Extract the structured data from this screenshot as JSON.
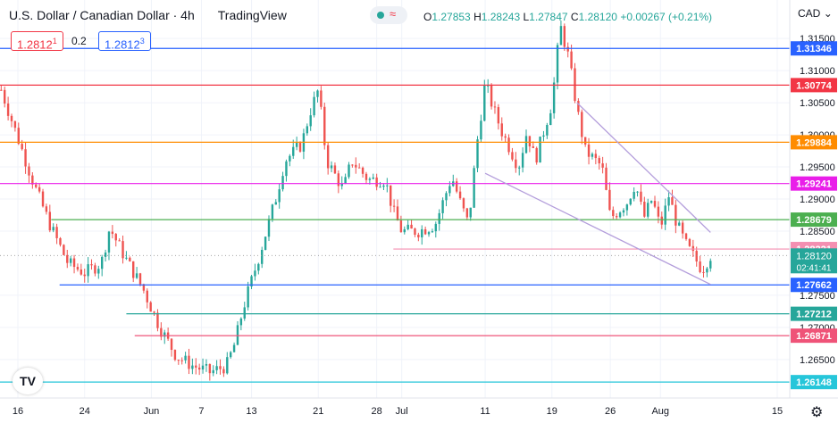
{
  "header": {
    "symbol": "U.S. Dollar / Canadian Dollar · 4h",
    "provider": "TradingView",
    "open_label": "O",
    "open": "1.27853",
    "high_label": "H",
    "high": "1.28243",
    "low_label": "L",
    "low": "1.27847",
    "close_label": "C",
    "close": "1.28120",
    "change": "+0.00267 (+0.21%)",
    "currency": "CAD"
  },
  "trade": {
    "sell": "1.2812",
    "sell_sup": "1",
    "spread": "0.2",
    "buy": "1.2812",
    "buy_sup": "3"
  },
  "colors": {
    "up": "#26a69a",
    "down": "#ef5350",
    "grid": "#f0f3fa"
  },
  "chart_data": {
    "type": "candlestick",
    "ylim": [
      1.259,
      1.321
    ],
    "x_ticks": [
      {
        "label": "16",
        "date": "2021-05-16"
      },
      {
        "label": "24",
        "date": "2021-05-24"
      },
      {
        "label": "Jun",
        "date": "2021-06-01"
      },
      {
        "label": "7",
        "date": "2021-06-07"
      },
      {
        "label": "13",
        "date": "2021-06-13"
      },
      {
        "label": "21",
        "date": "2021-06-21"
      },
      {
        "label": "28",
        "date": "2021-06-28"
      },
      {
        "label": "Jul",
        "date": "2021-07-01"
      },
      {
        "label": "11",
        "date": "2021-07-11"
      },
      {
        "label": "19",
        "date": "2021-07-19"
      },
      {
        "label": "26",
        "date": "2021-07-26"
      },
      {
        "label": "Aug",
        "date": "2021-08-01"
      },
      {
        "label": "15",
        "date": "2021-08-15"
      }
    ],
    "y_ticks": [
      "1.31500",
      "1.31000",
      "1.30500",
      "1.30000",
      "1.29500",
      "1.29000",
      "1.28500",
      "1.27500",
      "1.27000",
      "1.26500"
    ],
    "path": [
      [
        "2021-05-14",
        1.307
      ],
      [
        "2021-05-16",
        1.2995
      ],
      [
        "2021-05-18",
        1.292
      ],
      [
        "2021-05-20",
        1.2855
      ],
      [
        "2021-05-22",
        1.28
      ],
      [
        "2021-05-24",
        1.2785
      ],
      [
        "2021-05-26",
        1.28
      ],
      [
        "2021-05-27",
        1.2855
      ],
      [
        "2021-05-29",
        1.2805
      ],
      [
        "2021-05-31",
        1.276
      ],
      [
        "2021-06-02",
        1.27
      ],
      [
        "2021-06-04",
        1.2655
      ],
      [
        "2021-06-06",
        1.264
      ],
      [
        "2021-06-08",
        1.263
      ],
      [
        "2021-06-10",
        1.264
      ],
      [
        "2021-06-11",
        1.2675
      ],
      [
        "2021-06-12",
        1.273
      ],
      [
        "2021-06-14",
        1.2815
      ],
      [
        "2021-06-16",
        1.2905
      ],
      [
        "2021-06-17",
        1.296
      ],
      [
        "2021-06-19",
        1.2985
      ],
      [
        "2021-06-20",
        1.3035
      ],
      [
        "2021-06-21",
        1.307
      ],
      [
        "2021-06-22",
        1.296
      ],
      [
        "2021-06-24",
        1.2915
      ],
      [
        "2021-06-25",
        1.296
      ],
      [
        "2021-06-27",
        1.293
      ],
      [
        "2021-06-29",
        1.293
      ],
      [
        "2021-06-30",
        1.288
      ],
      [
        "2021-07-01",
        1.285
      ],
      [
        "2021-07-03",
        1.285
      ],
      [
        "2021-07-05",
        1.286
      ],
      [
        "2021-07-07",
        1.2935
      ],
      [
        "2021-07-08",
        1.2895
      ],
      [
        "2021-07-09",
        1.286
      ],
      [
        "2021-07-10",
        1.2985
      ],
      [
        "2021-07-11",
        1.308
      ],
      [
        "2021-07-12",
        1.304
      ],
      [
        "2021-07-13",
        1.3005
      ],
      [
        "2021-07-15",
        1.295
      ],
      [
        "2021-07-16",
        1.3005
      ],
      [
        "2021-07-17",
        1.296
      ],
      [
        "2021-07-19",
        1.305
      ],
      [
        "2021-07-20",
        1.317
      ],
      [
        "2021-07-21",
        1.312
      ],
      [
        "2021-07-22",
        1.304
      ],
      [
        "2021-07-23",
        1.2975
      ],
      [
        "2021-07-25",
        1.295
      ],
      [
        "2021-07-26",
        1.287
      ],
      [
        "2021-07-28",
        1.2895
      ],
      [
        "2021-07-29",
        1.2925
      ],
      [
        "2021-07-30",
        1.287
      ],
      [
        "2021-07-31",
        1.29
      ],
      [
        "2021-08-01",
        1.2855
      ],
      [
        "2021-08-02",
        1.2905
      ],
      [
        "2021-08-03",
        1.286
      ],
      [
        "2021-08-04",
        1.283
      ],
      [
        "2021-08-05",
        1.281
      ],
      [
        "2021-08-06",
        1.279
      ],
      [
        "2021-08-07",
        1.2812
      ]
    ],
    "horizontal_lines": [
      {
        "value": 1.31346,
        "label": "1.31346",
        "color": "#2962ff",
        "from": "start"
      },
      {
        "value": 1.30774,
        "label": "1.30774",
        "color": "#f23645",
        "from": "start"
      },
      {
        "value": 1.29884,
        "label": "1.29884",
        "color": "#ff8c00",
        "from": "start"
      },
      {
        "value": 1.29241,
        "label": "1.29241",
        "color": "#e91ee9",
        "from": "start"
      },
      {
        "value": 1.28679,
        "label": "1.28679",
        "color": "#4caf50",
        "from": "2021-05-20"
      },
      {
        "value": 1.28221,
        "label": "1.28221",
        "color": "#f48fb1",
        "from": "2021-06-30"
      },
      {
        "value": 1.27662,
        "label": "1.27662",
        "color": "#2962ff",
        "from": "2021-05-21"
      },
      {
        "value": 1.27212,
        "label": "1.27212",
        "color": "#26a69a",
        "from": "2021-05-29"
      },
      {
        "value": 1.26871,
        "label": "1.26871",
        "color": "#ef5378",
        "from": "2021-05-30"
      },
      {
        "value": 1.26148,
        "label": "1.26148",
        "color": "#26c6da",
        "from": "start"
      }
    ],
    "trendlines": [
      {
        "from": [
          "2021-07-22",
          1.305
        ],
        "to": [
          "2021-08-07",
          1.2848
        ],
        "color": "#b39ddb"
      },
      {
        "from": [
          "2021-07-11",
          1.294
        ],
        "to": [
          "2021-08-07",
          1.2767
        ],
        "color": "#b39ddb"
      }
    ],
    "last_price": {
      "value": 1.2812,
      "label": "1.28120",
      "countdown": "02:41:41",
      "color": "#26a69a"
    }
  }
}
